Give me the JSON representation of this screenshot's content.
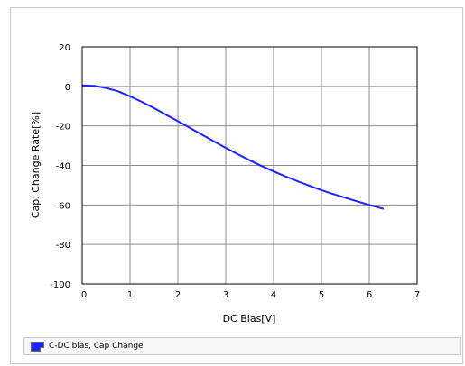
{
  "chart_data": {
    "type": "line",
    "xlabel": "DC Bias[V]",
    "ylabel": "Cap. Change Rate[%]",
    "xlim": [
      0,
      7
    ],
    "ylim": [
      -100,
      20
    ],
    "xticks": [
      "0",
      "1",
      "2",
      "3",
      "4",
      "5",
      "6",
      "7"
    ],
    "yticks": [
      "20",
      "0",
      "-20",
      "-40",
      "-60",
      "-80",
      "-100"
    ],
    "grid": true,
    "legend": "bottom",
    "series": [
      {
        "name": "C-DC bias, Cap Change",
        "color": "#1a22ff",
        "x": [
          0,
          0.25,
          0.5,
          0.75,
          1.0,
          1.25,
          1.5,
          1.75,
          2.0,
          2.25,
          2.5,
          2.75,
          3.0,
          3.25,
          3.5,
          3.75,
          4.0,
          4.25,
          4.5,
          4.75,
          5.0,
          5.25,
          5.5,
          5.75,
          6.0,
          6.3
        ],
        "y": [
          0.5,
          0.3,
          -0.8,
          -2.5,
          -5.0,
          -7.9,
          -11.0,
          -14.3,
          -17.6,
          -21.0,
          -24.4,
          -27.8,
          -31.1,
          -34.3,
          -37.4,
          -40.3,
          -43.0,
          -45.6,
          -48.0,
          -50.3,
          -52.5,
          -54.5,
          -56.4,
          -58.2,
          -60.0,
          -62.0
        ]
      }
    ]
  }
}
